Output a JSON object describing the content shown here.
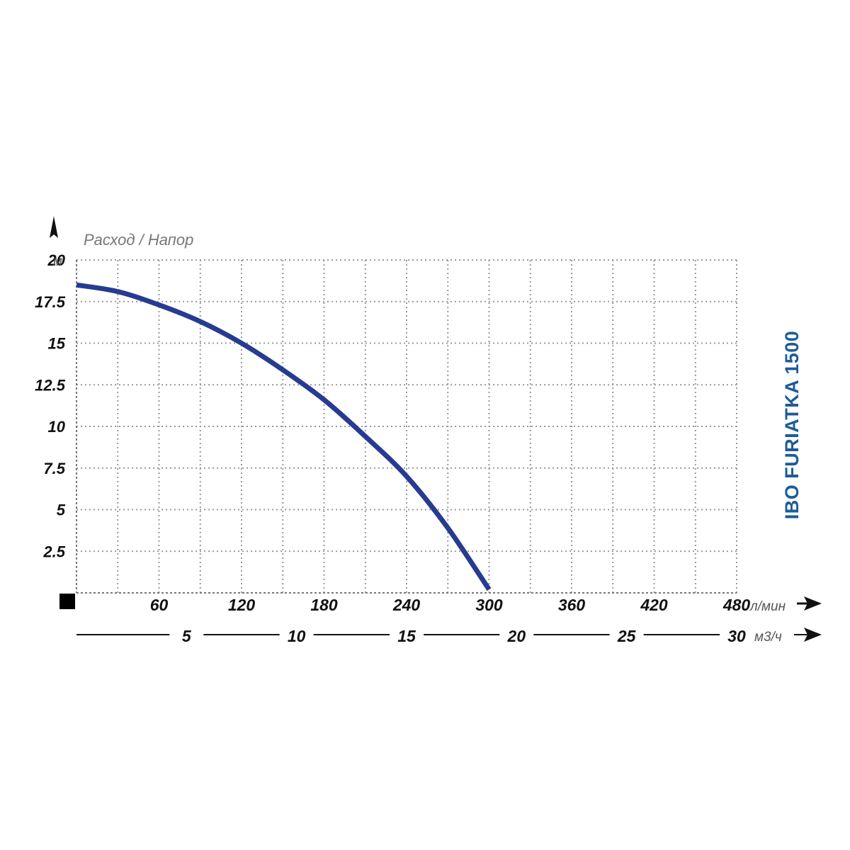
{
  "chart_data": {
    "type": "line",
    "title": "IBO FURIATKA 1500",
    "title_color": "#1d5c99",
    "line_color": "#263b91",
    "grid": true,
    "ylabel": "Расход / Напор",
    "y_unit": "м",
    "ylim": [
      0,
      20
    ],
    "y_ticks": [
      "2.5",
      "5",
      "7.5",
      "10",
      "12.5",
      "15",
      "17.5",
      "20"
    ],
    "xlim": [
      0,
      480
    ],
    "x_unit": "л/мин",
    "x_ticks": [
      "60",
      "120",
      "180",
      "240",
      "300",
      "360",
      "420",
      "480"
    ],
    "x2_unit": "м3/ч",
    "x2_ticks": [
      "5",
      "10",
      "15",
      "20",
      "25",
      "30"
    ],
    "x2_scale": 16,
    "series": [
      {
        "x": [
          0,
          30,
          60,
          90,
          120,
          150,
          180,
          210,
          240,
          270,
          300
        ],
        "y": [
          18.5,
          18.1,
          17.3,
          16.3,
          15.0,
          13.4,
          11.6,
          9.4,
          7.0,
          3.9,
          0.2
        ]
      }
    ]
  }
}
